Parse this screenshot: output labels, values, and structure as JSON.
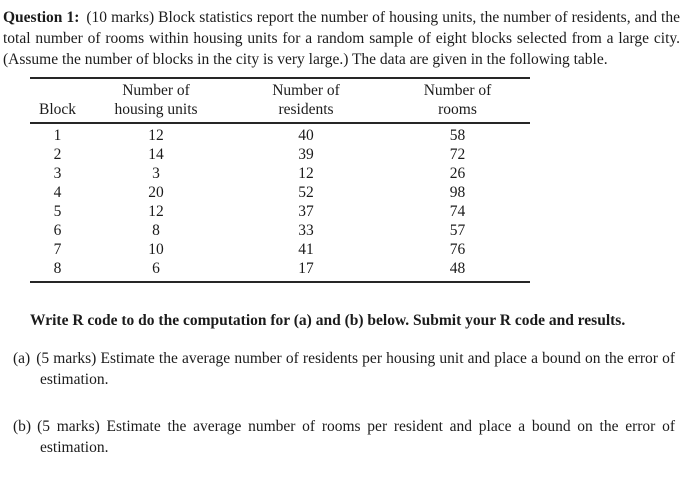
{
  "document": {
    "question": {
      "label": "Question 1:",
      "body": "(10 marks) Block statistics report the number of housing units, the number of residents, and the total number of rooms within housing units for a random sample of eight blocks selected from a large city. (Assume the number of blocks in the city is very large.) The data are given in the following table."
    },
    "table": {
      "columns": [
        {
          "line1": "",
          "line2": "Block"
        },
        {
          "line1": "Number of",
          "line2": "housing units"
        },
        {
          "line1": "Number of",
          "line2": "residents"
        },
        {
          "line1": "Number of",
          "line2": "rooms"
        }
      ],
      "rows": [
        [
          "1",
          "12",
          "40",
          "58"
        ],
        [
          "2",
          "14",
          "39",
          "72"
        ],
        [
          "3",
          "3",
          "12",
          "26"
        ],
        [
          "4",
          "20",
          "52",
          "98"
        ],
        [
          "5",
          "12",
          "37",
          "74"
        ],
        [
          "6",
          "8",
          "33",
          "57"
        ],
        [
          "7",
          "10",
          "41",
          "76"
        ],
        [
          "8",
          "6",
          "17",
          "48"
        ]
      ]
    },
    "instruction": "Write R code to do the computation for (a) and (b) below. Submit your R code and results.",
    "parts": [
      {
        "label": "(a)",
        "text": "(5 marks) Estimate the average number of residents per housing unit and place a bound on the error of estimation."
      },
      {
        "label": "(b)",
        "text": "(5 marks) Estimate the average number of rooms per resident and place a bound on the error of estimation."
      }
    ],
    "colors": {
      "background": "#ffffff",
      "text": "#1b1b1b",
      "rule": "#262626"
    }
  }
}
